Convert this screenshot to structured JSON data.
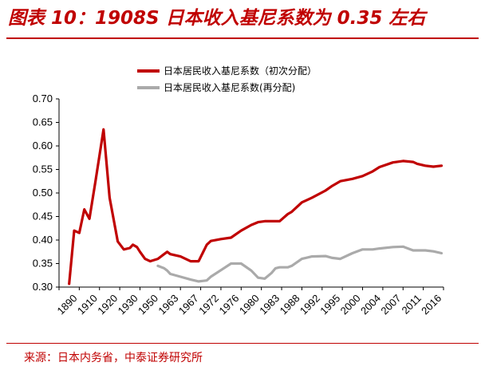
{
  "header": {
    "title": "图表 10：1908S 日本收入基尼系数为 0.35 左右"
  },
  "footer": {
    "source": "来源：日本内务省，中泰证券研究所"
  },
  "colors": {
    "accent": "#c00000",
    "series_primary": "#c00000",
    "series_secondary": "#aaaaaa"
  },
  "chart_data": {
    "type": "line",
    "title": "",
    "xlabel": "",
    "ylabel": "",
    "ylim": [
      0.3,
      0.7
    ],
    "y_ticks": [
      "0.30",
      "0.35",
      "0.40",
      "0.45",
      "0.50",
      "0.55",
      "0.60",
      "0.65",
      "0.70"
    ],
    "x_ticks": [
      "1890",
      "1910",
      "1920",
      "1930",
      "1950",
      "1963",
      "1967",
      "1972",
      "1976",
      "1980",
      "1983",
      "1988",
      "1992",
      "1995",
      "2000",
      "2004",
      "2007",
      "2011",
      "2016"
    ],
    "grid": false,
    "legend_position": "top-center",
    "series": [
      {
        "name": "日本居民收入基尼系数（初次分配）",
        "color": "#c00000",
        "x": [
          1890,
          1895,
          1900,
          1905,
          1910,
          1913,
          1917,
          1920,
          1924,
          1927,
          1930,
          1933,
          1937,
          1940,
          1945,
          1950,
          1955,
          1959,
          1961,
          1963,
          1965,
          1967,
          1969,
          1971,
          1972,
          1974,
          1976,
          1978,
          1980,
          1981,
          1982,
          1983,
          1984,
          1985,
          1987,
          1988,
          1990,
          1992,
          1994,
          1995,
          1997,
          2000,
          2002,
          2004,
          2005,
          2007,
          2009,
          2011,
          2012,
          2014,
          2016,
          2018
        ],
        "y": [
          0.307,
          0.42,
          0.415,
          0.465,
          0.445,
          0.525,
          0.635,
          0.49,
          0.397,
          0.38,
          0.383,
          0.39,
          0.385,
          0.375,
          0.36,
          0.355,
          0.36,
          0.37,
          0.375,
          0.37,
          0.365,
          0.355,
          0.355,
          0.39,
          0.398,
          0.402,
          0.405,
          0.42,
          0.432,
          0.438,
          0.44,
          0.44,
          0.44,
          0.44,
          0.455,
          0.46,
          0.48,
          0.49,
          0.505,
          0.515,
          0.525,
          0.53,
          0.536,
          0.546,
          0.555,
          0.565,
          0.568,
          0.566,
          0.562,
          0.558,
          0.556,
          0.558
        ]
      },
      {
        "name": "日本居民收入基尼系数(再分配)",
        "color": "#aaaaaa",
        "x": [
          1955,
          1959,
          1961,
          1963,
          1965,
          1967,
          1969,
          1971,
          1972,
          1974,
          1976,
          1978,
          1980,
          1981,
          1982,
          1983,
          1984,
          1985,
          1987,
          1988,
          1990,
          1992,
          1994,
          1995,
          1997,
          2000,
          2002,
          2004,
          2005,
          2007,
          2009,
          2011,
          2012,
          2014,
          2016,
          2018
        ],
        "y": [
          0.345,
          0.34,
          0.335,
          0.328,
          0.322,
          0.316,
          0.312,
          0.314,
          0.322,
          0.336,
          0.35,
          0.35,
          0.335,
          0.32,
          0.318,
          0.33,
          0.34,
          0.342,
          0.342,
          0.345,
          0.36,
          0.365,
          0.366,
          0.362,
          0.36,
          0.372,
          0.38,
          0.38,
          0.382,
          0.385,
          0.386,
          0.378,
          0.378,
          0.378,
          0.376,
          0.372
        ]
      }
    ]
  }
}
